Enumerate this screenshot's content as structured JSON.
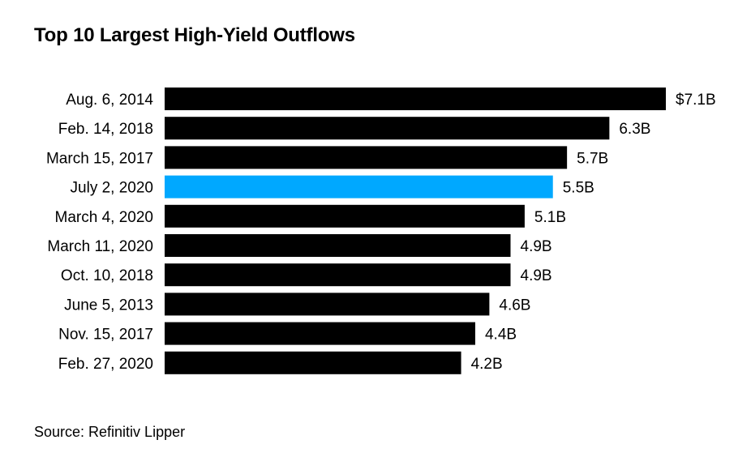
{
  "title": "Top 10 Largest High-Yield Outflows",
  "source": "Source: Refinitiv Lipper",
  "colors": {
    "bar": "#000000",
    "highlight": "#00a8ff"
  },
  "chart_data": {
    "type": "bar",
    "orientation": "horizontal",
    "title": "Top 10 Largest High-Yield Outflows",
    "categories": [
      "Aug. 6, 2014",
      "Feb. 14, 2018",
      "March 15, 2017",
      "July 2, 2020",
      "March 4, 2020",
      "March 11, 2020",
      "Oct. 10, 2018",
      "June 5, 2013",
      "Nov. 15, 2017",
      "Feb. 27, 2020"
    ],
    "values": [
      7.1,
      6.3,
      5.7,
      5.5,
      5.1,
      4.9,
      4.9,
      4.6,
      4.4,
      4.2
    ],
    "value_labels": [
      "$7.1B",
      "6.3B",
      "5.7B",
      "5.5B",
      "5.1B",
      "4.9B",
      "4.9B",
      "4.6B",
      "4.4B",
      "4.2B"
    ],
    "highlight_category": "July 2, 2020",
    "xlabel": "",
    "ylabel": "",
    "grid": false,
    "legend": "none"
  }
}
